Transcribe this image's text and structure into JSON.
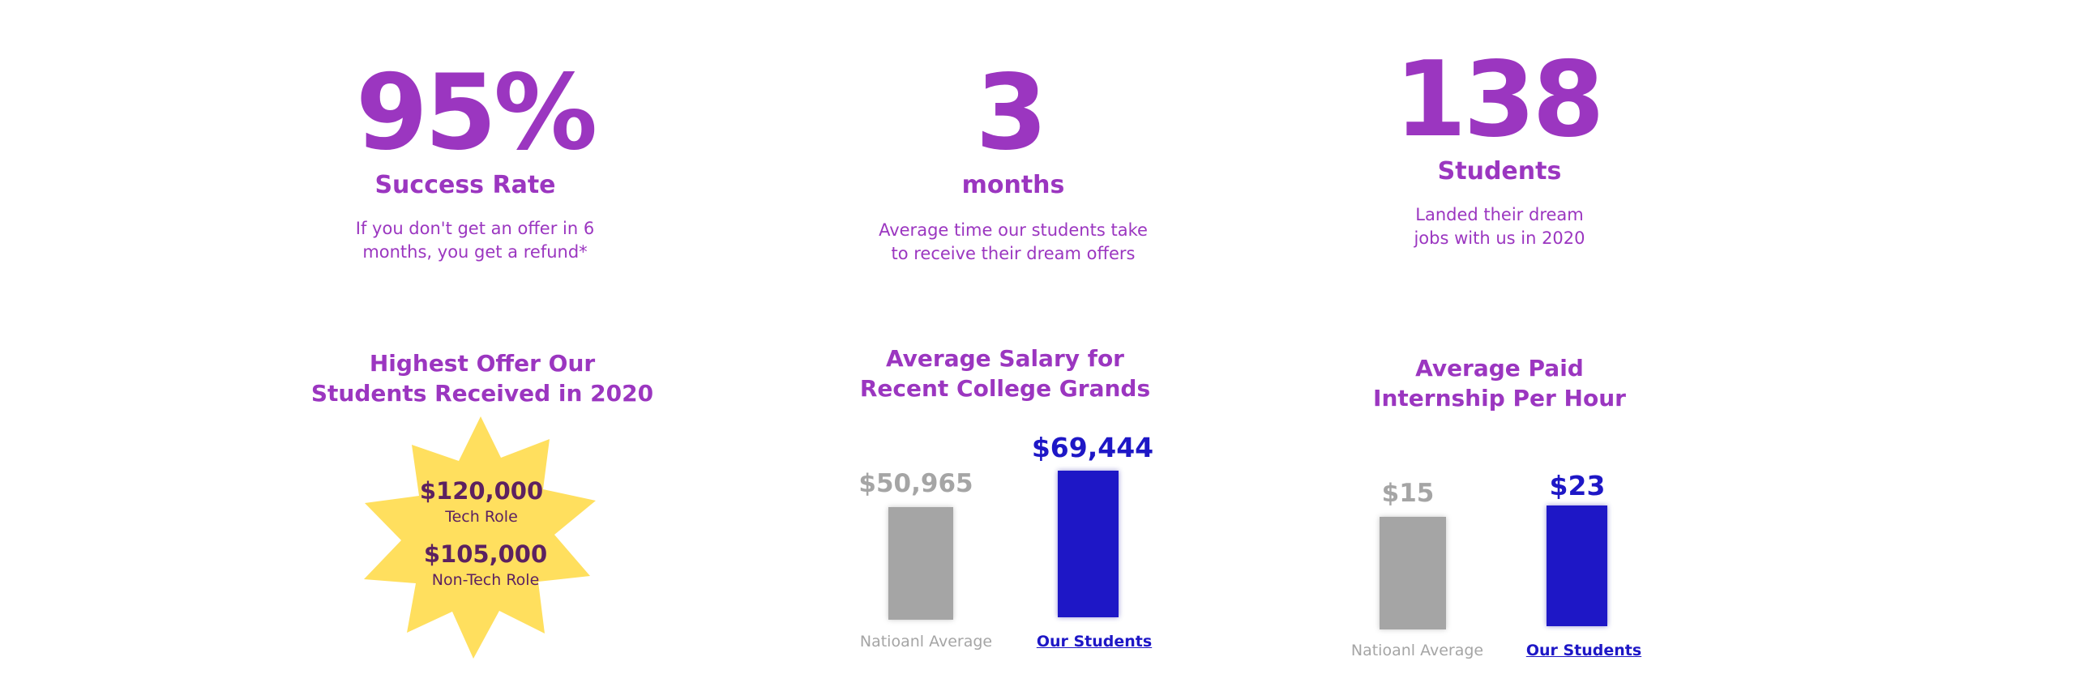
{
  "colors": {
    "accent_purple": "#9b36c0",
    "bar_gray": "#a5a5a5",
    "bar_blue": "#1e17c6",
    "star_yellow": "#ffdf5e",
    "star_text": "#5c2160"
  },
  "stats": [
    {
      "number": "95%",
      "label": "Success Rate",
      "desc_line1": "If you don't get an offer in 6",
      "desc_line2": "months, you get a refund*"
    },
    {
      "number": "3",
      "label": "months",
      "desc_line1": "Average time our students take",
      "desc_line2": "to receive their dream offers"
    },
    {
      "number": "138",
      "label": "Students",
      "desc_line1": "Landed their dream",
      "desc_line2": "jobs with us in 2020"
    }
  ],
  "highest_offer": {
    "title_line1": "Highest Offer Our",
    "title_line2": "Students Received in 2020",
    "tech_value": "$120,000",
    "tech_label": "Tech Role",
    "nontech_value": "$105,000",
    "nontech_label": "Non-Tech Role"
  },
  "salary_chart": {
    "title_line1": "Average Salary for",
    "title_line2": "Recent College Grands",
    "national": {
      "value": "$50,965",
      "label": "Natioanl Average"
    },
    "students": {
      "value": "$69,444",
      "label": "Our Students "
    }
  },
  "internship_chart": {
    "title_line1": "Average Paid",
    "title_line2": "Internship Per Hour",
    "national": {
      "value": "$15",
      "label": "Natioanl Average"
    },
    "students": {
      "value": "$23",
      "label": "Our Students "
    }
  }
}
